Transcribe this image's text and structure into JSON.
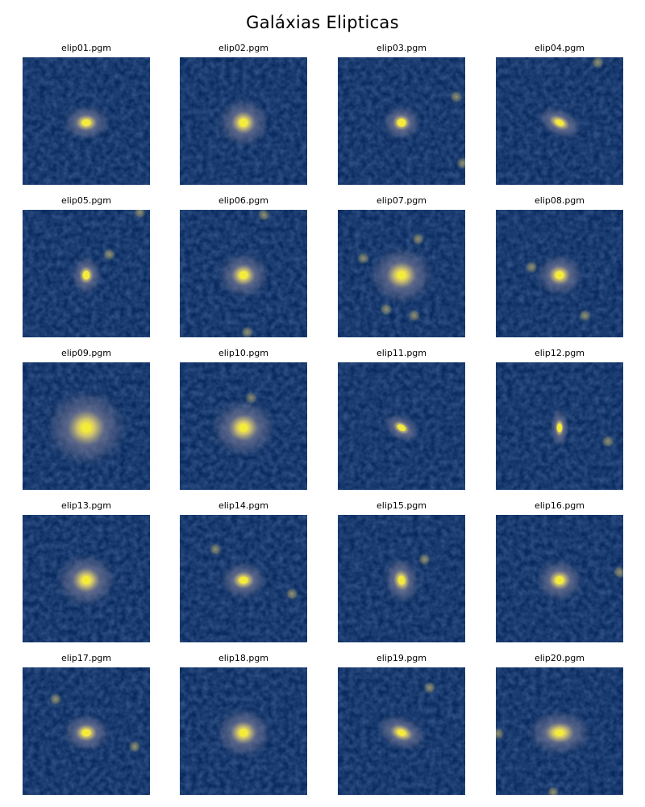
{
  "figure": {
    "title": "Galáxias Elipticas"
  },
  "panels": [
    {
      "label": "elip01.pgm",
      "galaxy": {
        "axis_ratio": 0.75,
        "angle_deg": 0,
        "extent": 0.55
      },
      "field_sources": []
    },
    {
      "label": "elip02.pgm",
      "galaxy": {
        "axis_ratio": 0.95,
        "angle_deg": 0,
        "extent": 0.6
      },
      "field_sources": []
    },
    {
      "label": "elip03.pgm",
      "galaxy": {
        "axis_ratio": 0.9,
        "angle_deg": 0,
        "extent": 0.45
      },
      "field_sources": [
        {
          "u": 0.93,
          "v": 0.31
        },
        {
          "u": 0.98,
          "v": 0.83
        }
      ]
    },
    {
      "label": "elip04.pgm",
      "galaxy": {
        "axis_ratio": 0.6,
        "angle_deg": 25,
        "extent": 0.55
      },
      "field_sources": [
        {
          "u": 0.8,
          "v": 0.04
        }
      ]
    },
    {
      "label": "elip05.pgm",
      "galaxy": {
        "axis_ratio": 0.8,
        "angle_deg": 90,
        "extent": 0.45
      },
      "field_sources": [
        {
          "u": 0.68,
          "v": 0.35
        },
        {
          "u": 0.92,
          "v": 0.02
        }
      ]
    },
    {
      "label": "elip06.pgm",
      "galaxy": {
        "axis_ratio": 0.9,
        "angle_deg": 0,
        "extent": 0.6
      },
      "field_sources": [
        {
          "u": 0.66,
          "v": 0.04
        },
        {
          "u": 0.53,
          "v": 0.96
        }
      ]
    },
    {
      "label": "elip07.pgm",
      "galaxy": {
        "axis_ratio": 0.9,
        "angle_deg": 0,
        "extent": 0.75
      },
      "field_sources": [
        {
          "u": 0.63,
          "v": 0.23
        },
        {
          "u": 0.38,
          "v": 0.78
        },
        {
          "u": 0.6,
          "v": 0.83
        },
        {
          "u": 0.2,
          "v": 0.38
        }
      ]
    },
    {
      "label": "elip08.pgm",
      "galaxy": {
        "axis_ratio": 0.9,
        "angle_deg": 0,
        "extent": 0.55
      },
      "field_sources": [
        {
          "u": 0.28,
          "v": 0.45
        },
        {
          "u": 0.7,
          "v": 0.83
        }
      ]
    },
    {
      "label": "elip09.pgm",
      "galaxy": {
        "axis_ratio": 0.95,
        "angle_deg": 0,
        "extent": 0.95
      },
      "field_sources": []
    },
    {
      "label": "elip10.pgm",
      "galaxy": {
        "axis_ratio": 0.9,
        "angle_deg": 0,
        "extent": 0.75
      },
      "field_sources": [
        {
          "u": 0.56,
          "v": 0.28
        }
      ]
    },
    {
      "label": "elip11.pgm",
      "galaxy": {
        "axis_ratio": 0.65,
        "angle_deg": 30,
        "extent": 0.45
      },
      "field_sources": []
    },
    {
      "label": "elip12.pgm",
      "galaxy": {
        "axis_ratio": 0.5,
        "angle_deg": 90,
        "extent": 0.45
      },
      "field_sources": [
        {
          "u": 0.88,
          "v": 0.62
        }
      ]
    },
    {
      "label": "elip13.pgm",
      "galaxy": {
        "axis_ratio": 0.9,
        "angle_deg": 0,
        "extent": 0.7
      },
      "field_sources": []
    },
    {
      "label": "elip14.pgm",
      "galaxy": {
        "axis_ratio": 0.8,
        "angle_deg": 0,
        "extent": 0.55
      },
      "field_sources": [
        {
          "u": 0.88,
          "v": 0.62
        },
        {
          "u": 0.28,
          "v": 0.27
        }
      ]
    },
    {
      "label": "elip15.pgm",
      "galaxy": {
        "axis_ratio": 0.75,
        "angle_deg": 80,
        "extent": 0.55
      },
      "field_sources": [
        {
          "u": 0.68,
          "v": 0.35
        }
      ]
    },
    {
      "label": "elip16.pgm",
      "galaxy": {
        "axis_ratio": 0.9,
        "angle_deg": 0,
        "extent": 0.55
      },
      "field_sources": [
        {
          "u": 0.97,
          "v": 0.45
        }
      ]
    },
    {
      "label": "elip17.pgm",
      "galaxy": {
        "axis_ratio": 0.8,
        "angle_deg": 0,
        "extent": 0.55
      },
      "field_sources": [
        {
          "u": 0.88,
          "v": 0.62
        },
        {
          "u": 0.26,
          "v": 0.25
        }
      ]
    },
    {
      "label": "elip18.pgm",
      "galaxy": {
        "axis_ratio": 0.9,
        "angle_deg": 0,
        "extent": 0.65
      },
      "field_sources": []
    },
    {
      "label": "elip19.pgm",
      "galaxy": {
        "axis_ratio": 0.65,
        "angle_deg": 20,
        "extent": 0.6
      },
      "field_sources": [
        {
          "u": 0.72,
          "v": 0.16
        }
      ]
    },
    {
      "label": "elip20.pgm",
      "galaxy": {
        "axis_ratio": 0.7,
        "angle_deg": 0,
        "extent": 0.75
      },
      "field_sources": [
        {
          "u": 0.45,
          "v": 0.98
        },
        {
          "u": 0.02,
          "v": 0.52
        }
      ]
    }
  ],
  "colors": {
    "background": "#082a5e",
    "halo": "#6f7391",
    "core": "#f4ec3a",
    "core_glow": "#d8c870",
    "source": "#9a9770"
  }
}
